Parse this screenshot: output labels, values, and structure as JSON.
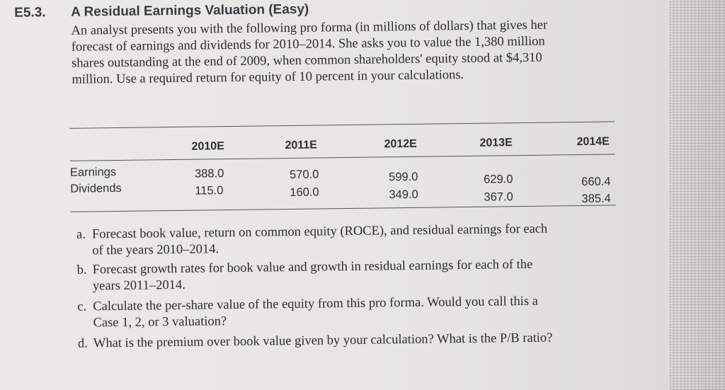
{
  "exercise": {
    "number": "E5.3.",
    "title": "A Residual Earnings Valuation (Easy)",
    "intro_lines": [
      "An analyst presents you with the following pro forma (in millions of dollars) that gives her",
      "forecast of earnings and dividends for 2010–2014. She asks you to value the 1,380 million",
      "shares outstanding at the end of 2009, when common shareholders' equity stood at $4,310",
      "million. Use a required return for equity of 10 percent in your calculations."
    ]
  },
  "table": {
    "headers": [
      "2010E",
      "2011E",
      "2012E",
      "2013E",
      "2014E"
    ],
    "rows": [
      {
        "label": "Earnings",
        "values": [
          "388.0",
          "570.0",
          "599.0",
          "629.0",
          "660.4"
        ]
      },
      {
        "label": "Dividends",
        "values": [
          "115.0",
          "160.0",
          "349.0",
          "367.0",
          "385.4"
        ]
      }
    ]
  },
  "questions": [
    {
      "letter": "a.",
      "lines": [
        "Forecast book value, return on common equity (ROCE), and residual earnings for each",
        "of the years 2010–2014."
      ]
    },
    {
      "letter": "b.",
      "lines": [
        "Forecast growth rates for book value and growth in residual earnings for each of the",
        "years 2011–2014."
      ]
    },
    {
      "letter": "c.",
      "lines": [
        "Calculate the per-share value of the equity from this pro forma. Would you call this a",
        "Case 1, 2, or 3 valuation?"
      ]
    },
    {
      "letter": "d.",
      "lines": [
        "What is the premium over book value given by your calculation? What is the P/B ratio?"
      ]
    }
  ]
}
